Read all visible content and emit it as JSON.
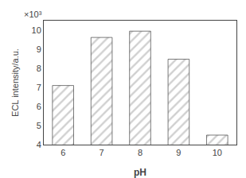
{
  "chart_data": {
    "type": "bar",
    "categories": [
      6,
      7,
      8,
      9,
      10
    ],
    "values": [
      7.1,
      9.62,
      9.95,
      8.48,
      4.5
    ],
    "color": "#d0d0d0",
    "xlabel": "pH",
    "ylabel": "ECL intensity/a.u.",
    "annotations": [
      "×10³"
    ],
    "ylim": [
      4,
      10.5
    ],
    "yticks": [
      4,
      5,
      6,
      7,
      8,
      9,
      10
    ],
    "grid": false
  }
}
